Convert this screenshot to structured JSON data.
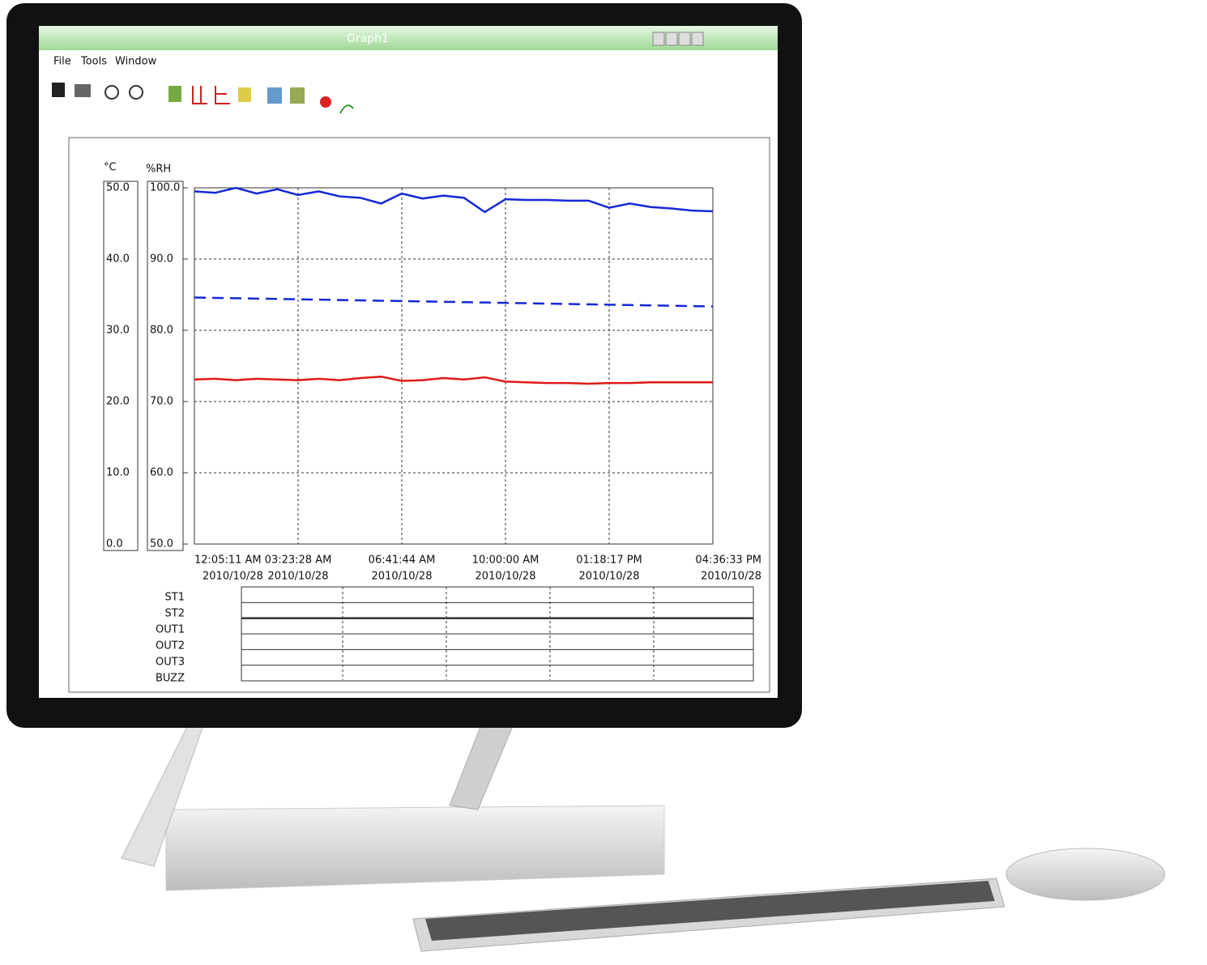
{
  "window": {
    "title": "Graph1",
    "menu": [
      "File",
      "Tools",
      "Window"
    ]
  },
  "chart_data": {
    "type": "line",
    "y_label": "°C",
    "y2_label": "%RH",
    "xlim": [
      0,
      25
    ],
    "xticks": [
      {
        "value": 0,
        "label": "12:05:11 AM"
      },
      {
        "value": 5,
        "label": "03:23:28 AM"
      },
      {
        "value": 10,
        "label": "06:41:44 AM"
      },
      {
        "value": 15,
        "label": "10:00:00 AM"
      },
      {
        "value": 20,
        "label": "01:18:17 PM"
      },
      {
        "value": 25,
        "label": "04:36:33 PM"
      }
    ],
    "xtick_dates": [
      "2010/10/28",
      "2010/10/28",
      "2010/10/28",
      "2010/10/28",
      "2010/10/28",
      "2010/10/28"
    ],
    "ylim": [
      0,
      50
    ],
    "yticks": [
      {
        "value": 0,
        "label": "0.0"
      },
      {
        "value": 10,
        "label": "10.0"
      },
      {
        "value": 20,
        "label": "20.0"
      },
      {
        "value": 30,
        "label": "30.0"
      },
      {
        "value": 40,
        "label": "40.0"
      },
      {
        "value": 50,
        "label": "50.0"
      }
    ],
    "y2lim": [
      50,
      100
    ],
    "y2ticks": [
      {
        "value": 50,
        "label": "50.0"
      },
      {
        "value": 60,
        "label": "60.0"
      },
      {
        "value": 70,
        "label": "70.0"
      },
      {
        "value": 80,
        "label": "80.0"
      },
      {
        "value": 90,
        "label": "90.0"
      },
      {
        "value": 100,
        "label": "100.0"
      }
    ],
    "grid": true,
    "x": [
      0,
      1,
      2,
      3,
      4,
      5,
      6,
      7,
      8,
      9,
      10,
      11,
      12,
      13,
      14,
      15,
      16,
      17,
      18,
      19,
      20,
      21,
      22,
      23,
      24,
      25
    ],
    "series": [
      {
        "color": "#1428d8",
        "axis": "y2",
        "style": "solid",
        "values": [
          99.5,
          99.3,
          100,
          99.2,
          99.8,
          99,
          99.5,
          98.8,
          98.6,
          97.8,
          99.2,
          98.5,
          98.9,
          98.6,
          96.6,
          98.4,
          98.3,
          98.3,
          98.2,
          98.2,
          97.2,
          97.8,
          97.3,
          97.1,
          96.8,
          96.7
        ]
      },
      {
        "color": "#1428d8",
        "axis": "y2",
        "style": "dashed",
        "values": [
          84.6,
          84.55,
          84.5,
          84.45,
          84.4,
          84.35,
          84.3,
          84.25,
          84.2,
          84.15,
          84.1,
          84.05,
          84,
          83.95,
          83.9,
          83.85,
          83.8,
          83.75,
          83.7,
          83.65,
          83.6,
          83.55,
          83.5,
          83.45,
          83.4,
          83.35
        ]
      },
      {
        "color": "#e01818",
        "axis": "y",
        "style": "solid",
        "values": [
          23.1,
          23.2,
          23.0,
          23.2,
          23.1,
          23.0,
          23.2,
          23.0,
          23.3,
          23.5,
          22.9,
          23.0,
          23.3,
          23.1,
          23.4,
          22.8,
          22.7,
          22.6,
          22.6,
          22.5,
          22.6,
          22.6,
          22.7,
          22.7,
          22.7,
          22.7
        ]
      }
    ]
  },
  "status_rows": [
    "ST1",
    "ST2",
    "OUT1",
    "OUT2",
    "OUT3",
    "BUZZ"
  ]
}
